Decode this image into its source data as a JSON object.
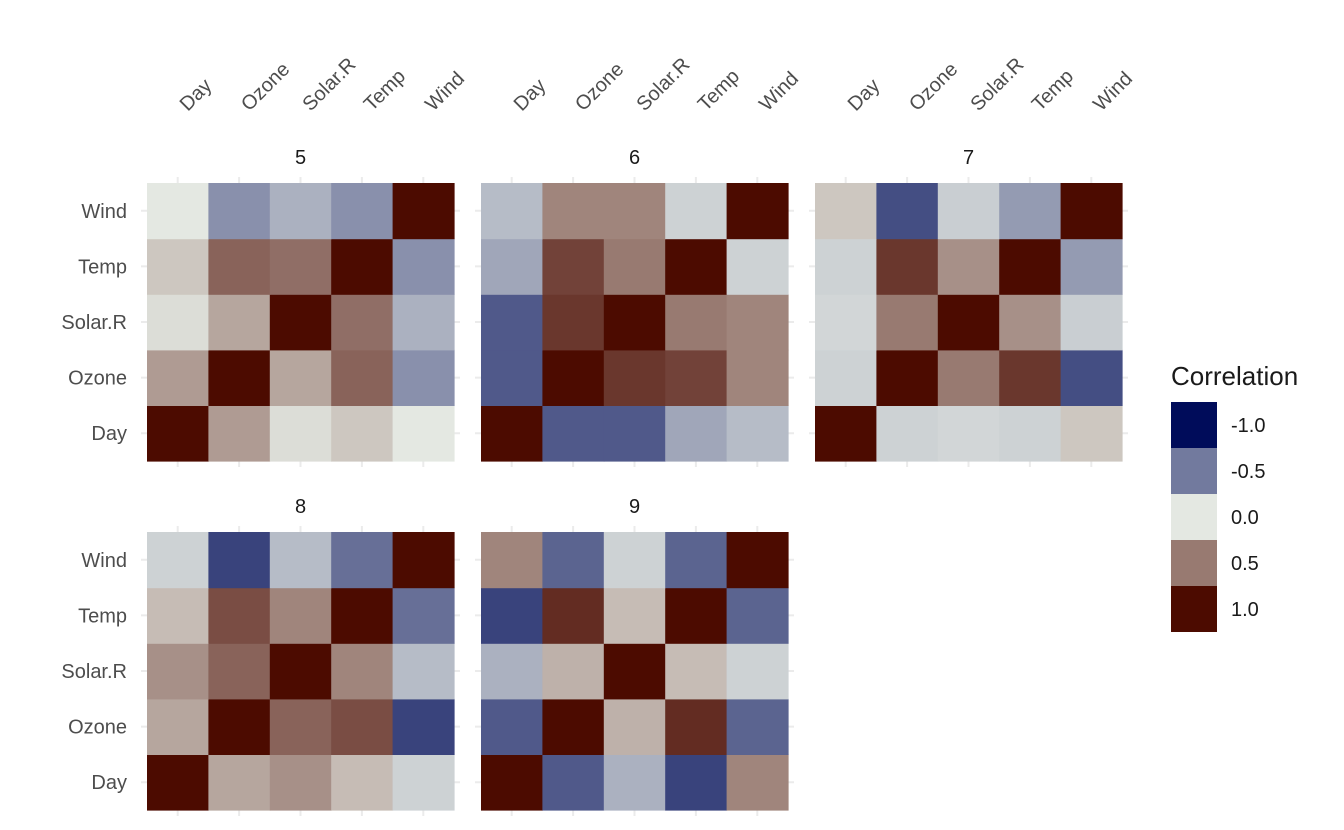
{
  "chart_data": {
    "type": "heatmap",
    "variables": [
      "Day",
      "Ozone",
      "Solar.R",
      "Temp",
      "Wind"
    ],
    "colors": {
      "low": "#000c5a",
      "mid": "#e4e8e2",
      "high": "#4c0b00"
    },
    "facets": [
      {
        "label": "5",
        "matrix": [
          [
            1.0,
            0.35,
            0.05,
            0.15,
            0.0
          ],
          [
            0.35,
            1.0,
            0.3,
            0.6,
            -0.4
          ],
          [
            0.05,
            0.3,
            1.0,
            0.55,
            -0.25
          ],
          [
            0.15,
            0.6,
            0.55,
            1.0,
            -0.4
          ],
          [
            0.0,
            -0.4,
            -0.25,
            -0.4,
            1.0
          ]
        ]
      },
      {
        "label": "6",
        "matrix": [
          [
            1.0,
            -0.65,
            -0.65,
            -0.3,
            -0.2
          ],
          [
            -0.65,
            1.0,
            0.8,
            0.75,
            0.45
          ],
          [
            -0.65,
            0.8,
            1.0,
            0.5,
            0.45
          ],
          [
            -0.3,
            0.75,
            0.5,
            1.0,
            -0.1
          ],
          [
            -0.2,
            0.45,
            0.45,
            -0.1,
            1.0
          ]
        ]
      },
      {
        "label": "7",
        "matrix": [
          [
            1.0,
            -0.1,
            -0.08,
            -0.1,
            0.15
          ],
          [
            -0.1,
            1.0,
            0.5,
            0.8,
            -0.7
          ],
          [
            -0.08,
            0.5,
            1.0,
            0.4,
            -0.12
          ],
          [
            -0.1,
            0.8,
            0.4,
            1.0,
            -0.35
          ],
          [
            0.15,
            -0.7,
            -0.12,
            -0.35,
            1.0
          ]
        ]
      },
      {
        "label": "8",
        "matrix": [
          [
            1.0,
            0.3,
            0.4,
            0.2,
            -0.1
          ],
          [
            0.3,
            1.0,
            0.6,
            0.7,
            -0.75
          ],
          [
            0.4,
            0.6,
            1.0,
            0.45,
            -0.2
          ],
          [
            0.2,
            0.7,
            0.45,
            1.0,
            -0.55
          ],
          [
            -0.1,
            -0.75,
            -0.2,
            -0.55,
            1.0
          ]
        ]
      },
      {
        "label": "9",
        "matrix": [
          [
            1.0,
            -0.65,
            -0.25,
            -0.75,
            0.45
          ],
          [
            -0.65,
            1.0,
            0.25,
            0.85,
            -0.6
          ],
          [
            -0.25,
            0.25,
            1.0,
            0.2,
            -0.1
          ],
          [
            -0.75,
            0.85,
            0.2,
            1.0,
            -0.6
          ],
          [
            0.45,
            -0.6,
            -0.1,
            -0.6,
            1.0
          ]
        ]
      }
    ],
    "legend": {
      "title": "Correlation",
      "breaks": [
        -1.0,
        -0.5,
        0.0,
        0.5,
        1.0
      ],
      "labels": [
        "-1.0",
        "-0.5",
        "0.0",
        "0.5",
        "1.0"
      ],
      "placement": "right"
    },
    "grid": true
  }
}
